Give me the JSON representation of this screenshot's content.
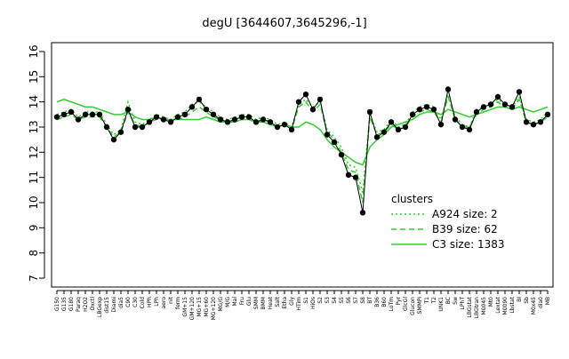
{
  "chart_data": {
    "type": "line",
    "title": "degU [3644607,3645296,-1]",
    "categories": [
      "G150",
      "G135",
      "G180",
      "Paraq",
      "H2O2",
      "Oxctl",
      "LBGexp",
      "dist15",
      "Diami",
      "dia5",
      "C90",
      "C30",
      "Cold",
      "HPh",
      "LPh",
      "aero",
      "nit",
      "ferm",
      "GM+15",
      "GM+120",
      "MG+15",
      "MG+60",
      "MG+120",
      "MG/G",
      "M/G",
      "Mal",
      "Fru",
      "Glu",
      "SMM",
      "BMM",
      "Heat",
      "Salt",
      "Etha",
      "Gly",
      "HTim",
      "S1",
      "HiOs",
      "S2",
      "S3",
      "S4",
      "S5",
      "S6",
      "S7",
      "S8",
      "BT",
      "B36",
      "B60",
      "LoTm",
      "Pyr",
      "GlcGl",
      "Glucon",
      "SMMPi",
      "T1",
      "T2",
      "UNK1",
      "BC",
      "Sw",
      "LPhT",
      "LBGstat",
      "LBGtran",
      "M0045",
      "Mt0",
      "Lextat",
      "M0090",
      "Lbstat",
      "BI",
      "Sb",
      "M0x45",
      "dia0",
      "MB"
    ],
    "series": [
      {
        "color": "#000000",
        "values": [
          13.4,
          13.5,
          13.6,
          13.3,
          13.5,
          13.5,
          13.5,
          13.0,
          12.5,
          12.8,
          13.7,
          13.0,
          13.0,
          13.2,
          13.4,
          13.3,
          13.2,
          13.4,
          13.5,
          13.8,
          14.1,
          13.7,
          13.5,
          13.3,
          13.2,
          13.3,
          13.4,
          13.4,
          13.2,
          13.3,
          13.2,
          13.0,
          13.1,
          12.9,
          14.0,
          14.3,
          13.7,
          14.1,
          12.7,
          12.4,
          11.9,
          11.1,
          11.0,
          9.6,
          13.6,
          12.6,
          12.8,
          13.2,
          12.9,
          13.0,
          13.5,
          13.7,
          13.8,
          13.7,
          13.1,
          14.5,
          13.3,
          13.0,
          12.9,
          13.6,
          13.8,
          13.9,
          14.2,
          13.9,
          13.8,
          14.4,
          13.2,
          13.1,
          13.2,
          13.5
        ]
      },
      {
        "name": "A924 size: 2",
        "color": "#33cc33",
        "dash": "2,3",
        "values": [
          13.5,
          13.6,
          13.7,
          13.4,
          13.6,
          13.6,
          13.6,
          13.1,
          12.7,
          12.9,
          14.0,
          13.2,
          13.1,
          13.3,
          13.5,
          13.4,
          13.3,
          13.5,
          13.6,
          13.9,
          14.0,
          13.8,
          13.6,
          13.4,
          13.3,
          13.4,
          13.5,
          13.5,
          13.3,
          13.4,
          13.3,
          13.1,
          13.2,
          13.0,
          13.9,
          14.1,
          13.8,
          14.0,
          12.9,
          12.6,
          12.2,
          11.5,
          11.4,
          10.4,
          13.5,
          12.8,
          12.9,
          13.3,
          13.0,
          13.1,
          13.6,
          13.8,
          13.9,
          13.8,
          13.3,
          14.3,
          13.4,
          13.1,
          13.0,
          13.7,
          13.8,
          13.9,
          14.1,
          13.9,
          13.8,
          14.2,
          13.3,
          13.2,
          13.3,
          13.6
        ]
      },
      {
        "name": "B39 size: 62",
        "color": "#33cc33",
        "dash": "6,4",
        "values": [
          13.3,
          13.4,
          13.5,
          13.3,
          13.4,
          13.4,
          13.4,
          13.0,
          12.6,
          12.8,
          13.6,
          13.1,
          13.0,
          13.2,
          13.3,
          13.3,
          13.2,
          13.3,
          13.4,
          13.6,
          13.8,
          13.6,
          13.4,
          13.3,
          13.2,
          13.3,
          13.3,
          13.3,
          13.2,
          13.3,
          13.2,
          13.0,
          13.1,
          12.9,
          13.8,
          14.0,
          13.6,
          13.9,
          12.8,
          12.5,
          12.0,
          11.3,
          11.2,
          10.0,
          13.4,
          12.7,
          12.8,
          13.1,
          12.9,
          13.0,
          13.4,
          13.6,
          13.7,
          13.6,
          13.2,
          14.2,
          13.3,
          13.0,
          13.0,
          13.5,
          13.7,
          13.8,
          14.0,
          13.8,
          13.7,
          14.1,
          13.2,
          13.1,
          13.2,
          13.4
        ]
      },
      {
        "name": "C3 size: 1383",
        "color": "#33cc33",
        "values": [
          14.0,
          14.1,
          14.0,
          13.9,
          13.8,
          13.8,
          13.7,
          13.6,
          13.5,
          13.5,
          13.6,
          13.4,
          13.3,
          13.3,
          13.4,
          13.3,
          13.3,
          13.3,
          13.3,
          13.3,
          13.3,
          13.4,
          13.3,
          13.2,
          13.2,
          13.2,
          13.3,
          13.3,
          13.2,
          13.2,
          13.1,
          13.0,
          13.1,
          13.0,
          13.0,
          13.2,
          13.1,
          12.9,
          12.5,
          12.2,
          12.0,
          11.8,
          11.6,
          11.5,
          12.2,
          12.5,
          12.7,
          13.0,
          13.1,
          13.2,
          13.3,
          13.5,
          13.6,
          13.6,
          13.5,
          13.7,
          13.6,
          13.5,
          13.4,
          13.5,
          13.6,
          13.7,
          13.8,
          13.8,
          13.7,
          13.8,
          13.7,
          13.6,
          13.7,
          13.8
        ]
      }
    ],
    "ylim": [
      7,
      16
    ],
    "yticks": [
      7,
      8,
      9,
      10,
      11,
      12,
      13,
      14,
      15,
      16
    ],
    "legend_title": "clusters",
    "legend": "right"
  }
}
